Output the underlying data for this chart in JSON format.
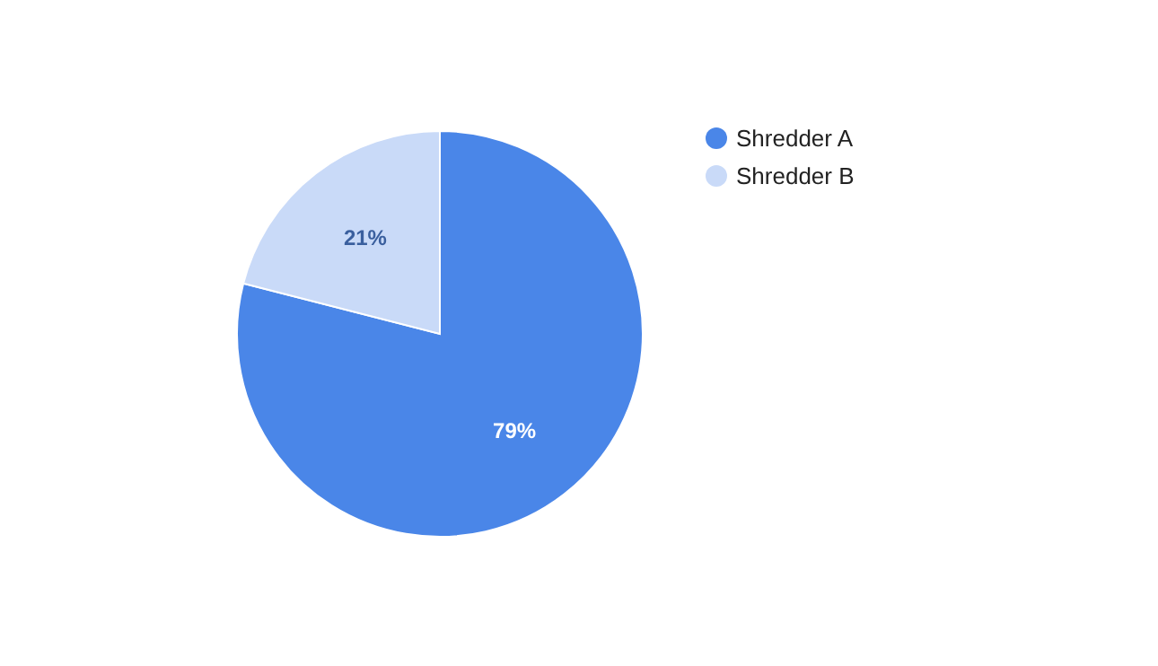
{
  "chart_data": {
    "type": "pie",
    "categories": [
      "Shredder A",
      "Shredder B"
    ],
    "values": [
      79,
      21
    ],
    "colors": [
      "#4a86e8",
      "#c9daf8"
    ],
    "value_labels": [
      "79%",
      "21%"
    ],
    "legend": "top right"
  }
}
